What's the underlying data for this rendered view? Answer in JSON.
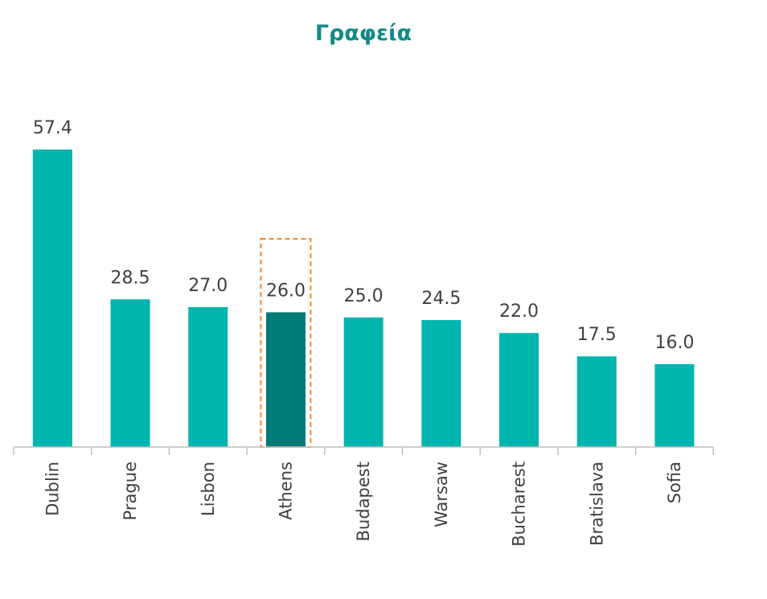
{
  "chart_data": {
    "type": "bar",
    "title": "Γραφεία",
    "categories": [
      "Dublin",
      "Prague",
      "Lisbon",
      "Athens",
      "Budapest",
      "Warsaw",
      "Bucharest",
      "Bratislava",
      "Sofia"
    ],
    "values": [
      57.4,
      28.5,
      27.0,
      26.0,
      25.0,
      24.5,
      22.0,
      17.5,
      16.0
    ],
    "value_labels": [
      "57.4",
      "28.5",
      "27.0",
      "26.0",
      "25.0",
      "24.5",
      "22.0",
      "17.5",
      "16.0"
    ],
    "highlight_category": "Athens",
    "xlabel": "",
    "ylabel": "",
    "ylim": [
      0,
      57.4
    ],
    "grid": false,
    "legend": "none"
  },
  "colors": {
    "title": "#138a87",
    "bar": "#00b5ad",
    "highlight_bar": "#007a76",
    "highlight_outline": "#f08a2c",
    "axis": "#bfbfbf",
    "text": "#404040"
  }
}
